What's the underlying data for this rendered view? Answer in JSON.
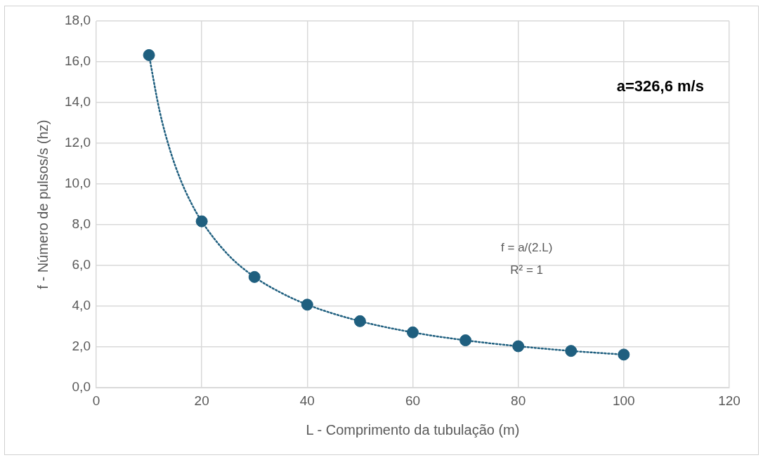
{
  "chart_data": {
    "type": "scatter",
    "xlabel": "L - Comprimento da tubulação (m)",
    "ylabel": "f - Número de pulsos/s (hz)",
    "x": [
      10,
      20,
      30,
      40,
      50,
      60,
      70,
      80,
      90,
      100
    ],
    "series": [
      {
        "color": "#1f5f7f",
        "marker": "circle",
        "values": [
          16.33,
          8.17,
          5.44,
          4.08,
          3.27,
          2.72,
          2.33,
          2.04,
          1.81,
          1.63
        ]
      },
      {
        "type": "line",
        "color": "#1f5f7f",
        "line_style": "dotted",
        "marker": "none",
        "x": [
          10,
          12,
          14,
          16,
          18,
          20,
          25,
          30,
          35,
          40,
          50,
          60,
          70,
          80,
          90,
          100
        ],
        "values": [
          16.33,
          13.6,
          11.66,
          10.2,
          9.07,
          8.17,
          6.53,
          5.44,
          4.67,
          4.08,
          3.27,
          2.72,
          2.33,
          2.04,
          1.81,
          1.63
        ]
      }
    ],
    "xlim": [
      0,
      120
    ],
    "xticks": [
      0,
      20,
      40,
      60,
      80,
      100,
      120
    ],
    "ylim": [
      0,
      18
    ],
    "yticks": [
      {
        "value": 0,
        "label": "0,0"
      },
      {
        "value": 2,
        "label": "2,0"
      },
      {
        "value": 4,
        "label": "4,0"
      },
      {
        "value": 6,
        "label": "6,0"
      },
      {
        "value": 8,
        "label": "8,0"
      },
      {
        "value": 10,
        "label": "10,0"
      },
      {
        "value": 12,
        "label": "12,0"
      },
      {
        "value": 14,
        "label": "14,0"
      },
      {
        "value": 16,
        "label": "16,0"
      },
      {
        "value": 18,
        "label": "18,0"
      }
    ],
    "annotations": [
      "a=326,6 m/s",
      "f = a/(2.L)",
      "R² = 1"
    ],
    "grid": true,
    "legend": false
  }
}
